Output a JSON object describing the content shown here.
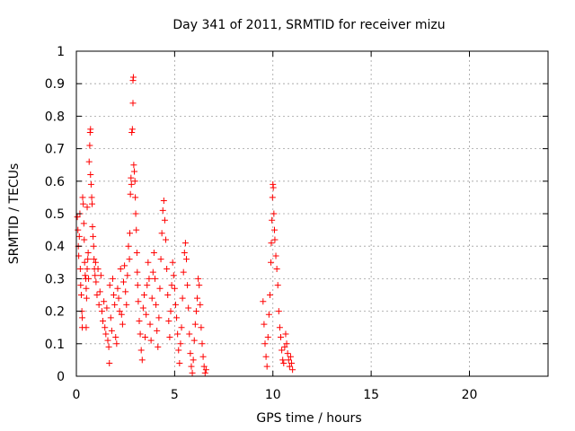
{
  "chart_data": {
    "type": "scatter",
    "title": "Day 341 of 2011, SRMTID for receiver mizu",
    "xlabel": "GPS time / hours",
    "ylabel": "SRMTID / TECUs",
    "xlim": [
      0,
      24
    ],
    "ylim": [
      0,
      1
    ],
    "x_ticks": [
      0,
      5,
      10,
      15,
      20
    ],
    "x_tick_labels": [
      "0",
      "5",
      "10",
      "15",
      "20"
    ],
    "y_ticks": [
      0,
      0.1,
      0.2,
      0.3,
      0.4,
      0.5,
      0.6,
      0.7,
      0.8,
      0.9,
      1
    ],
    "y_tick_labels": [
      "0",
      "0.1",
      "0.2",
      "0.3",
      "0.4",
      "0.5",
      "0.6",
      "0.7",
      "0.8",
      "0.9",
      "1"
    ],
    "grid": true,
    "marker": "+",
    "series_color": "#ff0000",
    "series": [
      {
        "name": "SRMTID",
        "points": [
          [
            0.05,
            0.49
          ],
          [
            0.08,
            0.45
          ],
          [
            0.1,
            0.4
          ],
          [
            0.12,
            0.37
          ],
          [
            0.15,
            0.43
          ],
          [
            0.18,
            0.5
          ],
          [
            0.2,
            0.33
          ],
          [
            0.22,
            0.28
          ],
          [
            0.25,
            0.25
          ],
          [
            0.28,
            0.2
          ],
          [
            0.3,
            0.18
          ],
          [
            0.3,
            0.15
          ],
          [
            0.32,
            0.55
          ],
          [
            0.35,
            0.53
          ],
          [
            0.38,
            0.47
          ],
          [
            0.4,
            0.42
          ],
          [
            0.42,
            0.35
          ],
          [
            0.45,
            0.31
          ],
          [
            0.48,
            0.3
          ],
          [
            0.5,
            0.27
          ],
          [
            0.5,
            0.15
          ],
          [
            0.52,
            0.24
          ],
          [
            0.55,
            0.33
          ],
          [
            0.55,
            0.52
          ],
          [
            0.58,
            0.36
          ],
          [
            0.6,
            0.38
          ],
          [
            0.62,
            0.3
          ],
          [
            0.65,
            0.66
          ],
          [
            0.68,
            0.71
          ],
          [
            0.7,
            0.75
          ],
          [
            0.72,
            0.76
          ],
          [
            0.72,
            0.62
          ],
          [
            0.75,
            0.59
          ],
          [
            0.78,
            0.55
          ],
          [
            0.8,
            0.53
          ],
          [
            0.82,
            0.46
          ],
          [
            0.85,
            0.43
          ],
          [
            0.88,
            0.4
          ],
          [
            0.9,
            0.36
          ],
          [
            0.92,
            0.33
          ],
          [
            0.95,
            0.31
          ],
          [
            0.98,
            0.35
          ],
          [
            1.0,
            0.29
          ],
          [
            1.05,
            0.25
          ],
          [
            1.1,
            0.33
          ],
          [
            1.15,
            0.22
          ],
          [
            1.2,
            0.26
          ],
          [
            1.25,
            0.31
          ],
          [
            1.3,
            0.2
          ],
          [
            1.35,
            0.17
          ],
          [
            1.4,
            0.23
          ],
          [
            1.45,
            0.15
          ],
          [
            1.5,
            0.13
          ],
          [
            1.55,
            0.21
          ],
          [
            1.6,
            0.11
          ],
          [
            1.65,
            0.09
          ],
          [
            1.68,
            0.04
          ],
          [
            1.7,
            0.28
          ],
          [
            1.75,
            0.18
          ],
          [
            1.8,
            0.14
          ],
          [
            1.85,
            0.3
          ],
          [
            1.9,
            0.25
          ],
          [
            1.95,
            0.22
          ],
          [
            2.0,
            0.12
          ],
          [
            2.05,
            0.1
          ],
          [
            2.1,
            0.27
          ],
          [
            2.15,
            0.24
          ],
          [
            2.2,
            0.2
          ],
          [
            2.25,
            0.33
          ],
          [
            2.3,
            0.19
          ],
          [
            2.35,
            0.16
          ],
          [
            2.4,
            0.29
          ],
          [
            2.45,
            0.34
          ],
          [
            2.5,
            0.26
          ],
          [
            2.55,
            0.22
          ],
          [
            2.6,
            0.31
          ],
          [
            2.65,
            0.4
          ],
          [
            2.7,
            0.36
          ],
          [
            2.72,
            0.44
          ],
          [
            2.75,
            0.56
          ],
          [
            2.78,
            0.61
          ],
          [
            2.8,
            0.59
          ],
          [
            2.82,
            0.75
          ],
          [
            2.85,
            0.76
          ],
          [
            2.88,
            0.84
          ],
          [
            2.88,
            0.91
          ],
          [
            2.9,
            0.92
          ],
          [
            2.92,
            0.65
          ],
          [
            2.95,
            0.63
          ],
          [
            2.98,
            0.6
          ],
          [
            3.0,
            0.55
          ],
          [
            3.02,
            0.5
          ],
          [
            3.05,
            0.45
          ],
          [
            3.08,
            0.38
          ],
          [
            3.1,
            0.32
          ],
          [
            3.12,
            0.28
          ],
          [
            3.15,
            0.23
          ],
          [
            3.2,
            0.17
          ],
          [
            3.25,
            0.13
          ],
          [
            3.3,
            0.08
          ],
          [
            3.35,
            0.05
          ],
          [
            3.4,
            0.21
          ],
          [
            3.45,
            0.25
          ],
          [
            3.5,
            0.12
          ],
          [
            3.55,
            0.19
          ],
          [
            3.6,
            0.28
          ],
          [
            3.65,
            0.35
          ],
          [
            3.7,
            0.3
          ],
          [
            3.75,
            0.16
          ],
          [
            3.8,
            0.11
          ],
          [
            3.85,
            0.24
          ],
          [
            3.9,
            0.32
          ],
          [
            3.95,
            0.38
          ],
          [
            4.0,
            0.3
          ],
          [
            4.05,
            0.22
          ],
          [
            4.1,
            0.14
          ],
          [
            4.15,
            0.09
          ],
          [
            4.2,
            0.18
          ],
          [
            4.25,
            0.27
          ],
          [
            4.3,
            0.36
          ],
          [
            4.35,
            0.44
          ],
          [
            4.4,
            0.51
          ],
          [
            4.45,
            0.54
          ],
          [
            4.5,
            0.48
          ],
          [
            4.55,
            0.42
          ],
          [
            4.6,
            0.33
          ],
          [
            4.65,
            0.25
          ],
          [
            4.7,
            0.17
          ],
          [
            4.75,
            0.12
          ],
          [
            4.8,
            0.2
          ],
          [
            4.85,
            0.28
          ],
          [
            4.9,
            0.35
          ],
          [
            4.95,
            0.31
          ],
          [
            5.0,
            0.27
          ],
          [
            5.05,
            0.22
          ],
          [
            5.1,
            0.18
          ],
          [
            5.15,
            0.13
          ],
          [
            5.2,
            0.08
          ],
          [
            5.25,
            0.04
          ],
          [
            5.3,
            0.1
          ],
          [
            5.35,
            0.15
          ],
          [
            5.4,
            0.24
          ],
          [
            5.45,
            0.32
          ],
          [
            5.5,
            0.38
          ],
          [
            5.55,
            0.41
          ],
          [
            5.6,
            0.36
          ],
          [
            5.65,
            0.28
          ],
          [
            5.7,
            0.21
          ],
          [
            5.75,
            0.13
          ],
          [
            5.8,
            0.07
          ],
          [
            5.85,
            0.03
          ],
          [
            5.9,
            0.01
          ],
          [
            5.95,
            0.05
          ],
          [
            6.0,
            0.11
          ],
          [
            6.05,
            0.16
          ],
          [
            6.1,
            0.2
          ],
          [
            6.15,
            0.24
          ],
          [
            6.2,
            0.3
          ],
          [
            6.25,
            0.28
          ],
          [
            6.3,
            0.22
          ],
          [
            6.35,
            0.15
          ],
          [
            6.4,
            0.1
          ],
          [
            6.45,
            0.06
          ],
          [
            6.5,
            0.03
          ],
          [
            6.55,
            0.01
          ],
          [
            6.6,
            0.02
          ],
          [
            9.5,
            0.23
          ],
          [
            9.55,
            0.16
          ],
          [
            9.6,
            0.1
          ],
          [
            9.65,
            0.06
          ],
          [
            9.7,
            0.03
          ],
          [
            9.75,
            0.12
          ],
          [
            9.8,
            0.19
          ],
          [
            9.85,
            0.25
          ],
          [
            9.9,
            0.35
          ],
          [
            9.92,
            0.41
          ],
          [
            9.95,
            0.48
          ],
          [
            9.98,
            0.55
          ],
          [
            10.0,
            0.59
          ],
          [
            10.02,
            0.58
          ],
          [
            10.05,
            0.5
          ],
          [
            10.08,
            0.45
          ],
          [
            10.1,
            0.42
          ],
          [
            10.15,
            0.37
          ],
          [
            10.2,
            0.33
          ],
          [
            10.25,
            0.28
          ],
          [
            10.3,
            0.2
          ],
          [
            10.35,
            0.15
          ],
          [
            10.4,
            0.12
          ],
          [
            10.45,
            0.08
          ],
          [
            10.5,
            0.05
          ],
          [
            10.55,
            0.04
          ],
          [
            10.6,
            0.09
          ],
          [
            10.65,
            0.13
          ],
          [
            10.7,
            0.1
          ],
          [
            10.75,
            0.07
          ],
          [
            10.8,
            0.05
          ],
          [
            10.85,
            0.03
          ],
          [
            10.9,
            0.06
          ],
          [
            10.95,
            0.04
          ],
          [
            11.0,
            0.02
          ]
        ]
      }
    ]
  }
}
